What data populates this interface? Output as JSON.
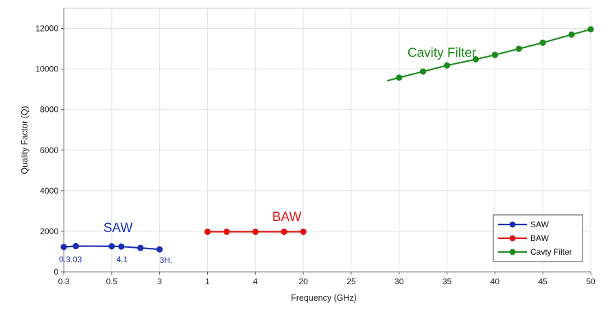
{
  "chart_data": {
    "type": "line",
    "title": "",
    "xlabel": "Frequency (GHz)",
    "ylabel": "Quality Factor (Q)",
    "ylim": [
      0,
      13000
    ],
    "yticks": [
      0,
      2000,
      4000,
      6000,
      8000,
      10000,
      12000
    ],
    "xtick_labels": [
      "0.3",
      "0.5",
      "3",
      "1",
      "4",
      "20",
      "25",
      "30",
      "35",
      "40",
      "45",
      "50"
    ],
    "grid": true,
    "legend_position": "bottom-right",
    "series": [
      {
        "name": "SAW",
        "color": "#1a2fb5",
        "label": "SAW",
        "x_index": [
          0,
          0.25,
          1,
          1.2,
          1.6,
          2
        ],
        "y": [
          1230,
          1270,
          1260,
          1250,
          1180,
          1110
        ]
      },
      {
        "name": "BAW",
        "color": "#e01414",
        "label": "BAW",
        "x_index": [
          3,
          3.4,
          4,
          4.6,
          5
        ],
        "y": [
          1980,
          1980,
          1980,
          1980,
          1980
        ]
      },
      {
        "name": "Cavty Filter",
        "color": "#1b8c1b",
        "label": "Cavity Filter",
        "x_index": [
          6.75,
          7,
          7.5,
          8,
          8.6,
          9,
          9.5,
          10,
          10.6,
          11
        ],
        "y": [
          9420,
          9580,
          9880,
          10180,
          10480,
          10700,
          11000,
          11300,
          11700,
          11960
        ],
        "markers": [
          false,
          true,
          true,
          true,
          true,
          true,
          true,
          true,
          true,
          true
        ]
      }
    ],
    "annotations": [
      {
        "text": "0.3.03",
        "x_index": -0.1,
        "y": 480,
        "color": "#1a2fb5"
      },
      {
        "text": "4.1",
        "x_index": 1.1,
        "y": 480,
        "color": "#1a2fb5"
      },
      {
        "text": "3H.",
        "x_index": 2,
        "y": 440,
        "color": "#1a2fb5"
      }
    ]
  }
}
